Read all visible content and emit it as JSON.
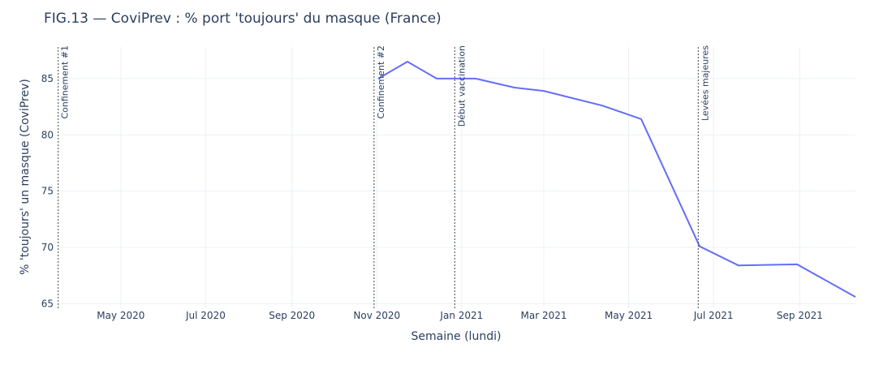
{
  "chart_data": {
    "type": "line",
    "title": "FIG.13 — CoviPrev : % port 'toujours' du masque (France)",
    "xlabel": "Semaine (lundi)",
    "ylabel": "% 'toujours' un masque (CoviPrev)",
    "grid": true,
    "legend": "none",
    "colors": {
      "line": "#636efa",
      "grid": "#ebf0f8",
      "text": "#2a3f5f",
      "vline": "#444444"
    },
    "xlim": [
      "2020-03-16",
      "2021-10-11"
    ],
    "ylim": [
      64.6,
      87.8
    ],
    "x_ticks": [
      {
        "date": "2020-05-01",
        "label": "May 2020"
      },
      {
        "date": "2020-07-01",
        "label": "Jul 2020"
      },
      {
        "date": "2020-09-01",
        "label": "Sep 2020"
      },
      {
        "date": "2020-11-01",
        "label": "Nov 2020"
      },
      {
        "date": "2021-01-01",
        "label": "Jan 2021"
      },
      {
        "date": "2021-03-01",
        "label": "Mar 2021"
      },
      {
        "date": "2021-05-01",
        "label": "May 2021"
      },
      {
        "date": "2021-07-01",
        "label": "Jul 2021"
      },
      {
        "date": "2021-09-01",
        "label": "Sep 2021"
      }
    ],
    "y_ticks": [
      65,
      70,
      75,
      80,
      85
    ],
    "series": [
      {
        "x": [
          "2020-11-02",
          "2020-11-23",
          "2020-12-14",
          "2021-01-11",
          "2021-02-08",
          "2021-03-01",
          "2021-04-12",
          "2021-05-10",
          "2021-06-21",
          "2021-07-19",
          "2021-08-30",
          "2021-10-11"
        ],
        "y": [
          85.0,
          86.5,
          85.0,
          85.0,
          84.2,
          83.9,
          82.6,
          81.4,
          70.1,
          68.4,
          68.5,
          65.6
        ]
      }
    ],
    "annotations": [
      {
        "date": "2020-03-17",
        "label": "Confinement #1"
      },
      {
        "date": "2020-10-30",
        "label": "Confinement #2"
      },
      {
        "date": "2020-12-27",
        "label": "Début vaccination"
      },
      {
        "date": "2021-06-20",
        "label": "Levées majeures"
      }
    ]
  }
}
